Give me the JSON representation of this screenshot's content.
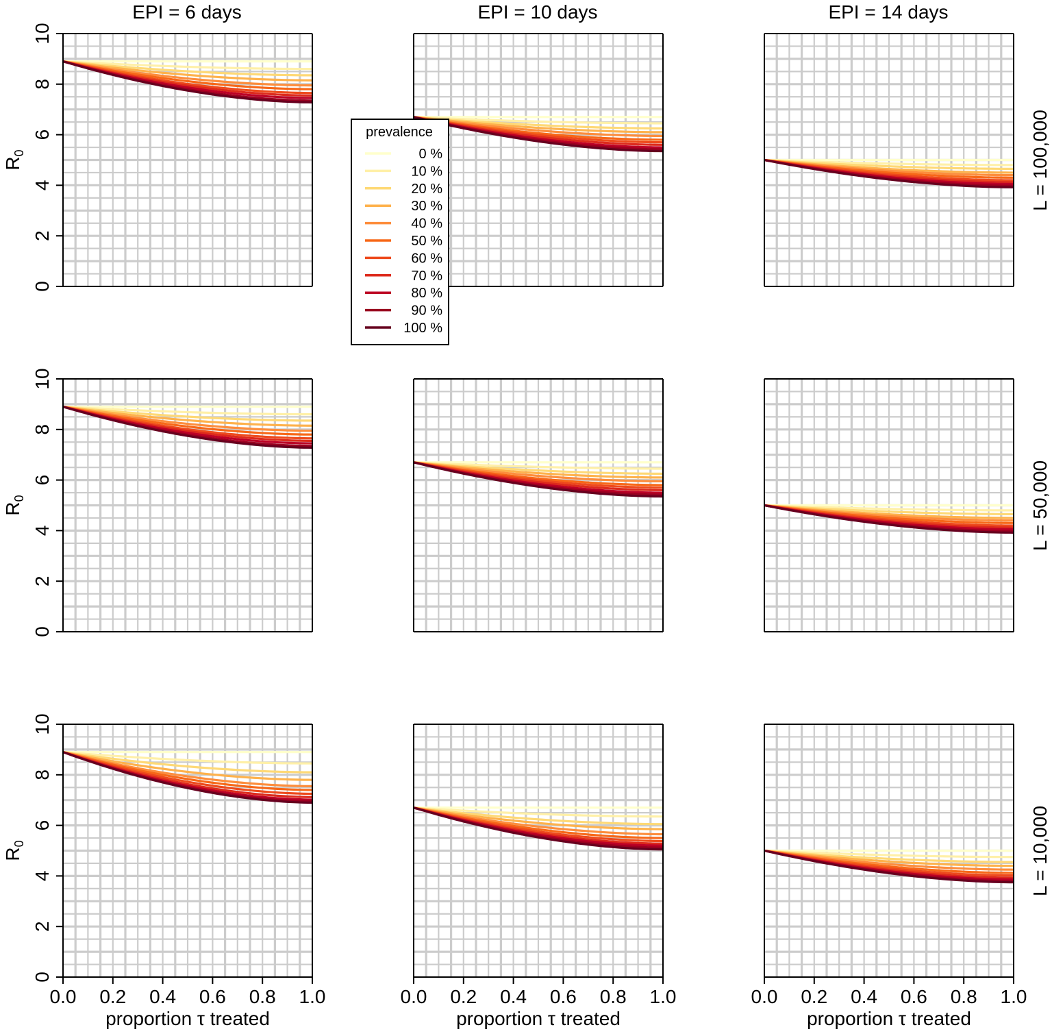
{
  "column_titles": [
    "EPI = 6 days",
    "EPI = 10 days",
    "EPI = 14 days"
  ],
  "row_labels": [
    "L = 100,000",
    "L = 50,000",
    "L = 10,000"
  ],
  "ylabel": {
    "main": "R",
    "sub": "0"
  },
  "xlabel": "proportion τ treated",
  "x_ticks": [
    "0.0",
    "0.2",
    "0.4",
    "0.6",
    "0.8",
    "1.0"
  ],
  "y_ticks": [
    "0",
    "2",
    "4",
    "6",
    "8",
    "10"
  ],
  "legend": {
    "title": "prevalence",
    "entries": [
      "0 %",
      "10 %",
      "20 %",
      "30 %",
      "40 %",
      "50 %",
      "60 %",
      "70 %",
      "80 %",
      "90 %",
      "100 %"
    ],
    "position": "upper-left of center column"
  },
  "colors": {
    "grid": "#cccccc",
    "series": [
      "#ffffcc",
      "#fff0a8",
      "#fed976",
      "#feb24c",
      "#fd8d3c",
      "#f76818",
      "#ee4a1c",
      "#dd2a1c",
      "#bd0026",
      "#9a0020",
      "#67001f"
    ]
  },
  "chart_data": {
    "type": "line",
    "layout": "3x3 facet grid (rows = L, columns = EPI)",
    "xlim": [
      0,
      1
    ],
    "ylim": [
      0,
      10
    ],
    "grid": true,
    "x": [
      0.0,
      0.1,
      0.2,
      0.3,
      0.4,
      0.5,
      0.6,
      0.7,
      0.8,
      0.9,
      1.0
    ],
    "series_names": [
      "0 %",
      "10 %",
      "20 %",
      "30 %",
      "40 %",
      "50 %",
      "60 %",
      "70 %",
      "80 %",
      "90 %",
      "100 %"
    ],
    "panels": [
      {
        "column": "EPI = 6 days",
        "row": "L = 100,000",
        "y_at_0": 8.9,
        "y_at_1_by_prevalence": [
          8.9,
          8.6,
          8.35,
          8.15,
          7.95,
          7.8,
          7.65,
          7.55,
          7.45,
          7.35,
          7.28
        ]
      },
      {
        "column": "EPI = 10 days",
        "row": "L = 100,000",
        "y_at_0": 6.7,
        "y_at_1_by_prevalence": [
          6.7,
          6.45,
          6.25,
          6.1,
          5.95,
          5.8,
          5.7,
          5.6,
          5.5,
          5.42,
          5.35
        ]
      },
      {
        "column": "EPI = 14 days",
        "row": "L = 100,000",
        "y_at_0": 5.0,
        "y_at_1_by_prevalence": [
          5.0,
          4.8,
          4.65,
          4.5,
          4.4,
          4.3,
          4.2,
          4.12,
          4.05,
          3.98,
          3.92
        ]
      },
      {
        "column": "EPI = 6 days",
        "row": "L = 50,000",
        "y_at_0": 8.9,
        "y_at_1_by_prevalence": [
          8.9,
          8.6,
          8.35,
          8.15,
          7.95,
          7.8,
          7.65,
          7.55,
          7.45,
          7.35,
          7.28
        ]
      },
      {
        "column": "EPI = 10 days",
        "row": "L = 50,000",
        "y_at_0": 6.7,
        "y_at_1_by_prevalence": [
          6.7,
          6.45,
          6.25,
          6.1,
          5.95,
          5.8,
          5.7,
          5.6,
          5.5,
          5.42,
          5.35
        ]
      },
      {
        "column": "EPI = 14 days",
        "row": "L = 50,000",
        "y_at_0": 5.0,
        "y_at_1_by_prevalence": [
          5.0,
          4.8,
          4.65,
          4.5,
          4.4,
          4.3,
          4.2,
          4.12,
          4.05,
          3.98,
          3.92
        ]
      },
      {
        "column": "EPI = 6 days",
        "row": "L = 10,000",
        "y_at_0": 8.9,
        "y_at_1_by_prevalence": [
          8.9,
          8.45,
          8.1,
          7.8,
          7.55,
          7.4,
          7.25,
          7.12,
          7.02,
          6.95,
          6.9
        ]
      },
      {
        "column": "EPI = 10 days",
        "row": "L = 10,000",
        "y_at_0": 6.7,
        "y_at_1_by_prevalence": [
          6.7,
          6.35,
          6.05,
          5.85,
          5.65,
          5.5,
          5.38,
          5.28,
          5.2,
          5.12,
          5.05
        ]
      },
      {
        "column": "EPI = 14 days",
        "row": "L = 10,000",
        "y_at_0": 5.0,
        "y_at_1_by_prevalence": [
          5.0,
          4.75,
          4.55,
          4.4,
          4.25,
          4.12,
          4.02,
          3.93,
          3.86,
          3.8,
          3.75
        ]
      }
    ]
  }
}
